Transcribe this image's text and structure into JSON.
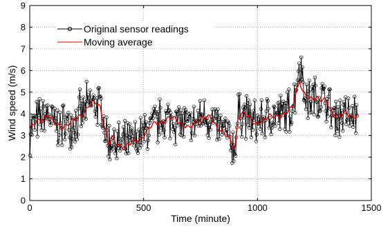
{
  "chart_data": {
    "type": "line",
    "title": "",
    "xlabel": "Time (minute)",
    "ylabel": "Wind speed (m/s)",
    "xlim": [
      0,
      1500
    ],
    "ylim": [
      0,
      9
    ],
    "xticks": [
      "0",
      "500",
      "1000",
      "1500"
    ],
    "yticks": [
      "0",
      "1",
      "2",
      "3",
      "4",
      "5",
      "6",
      "7",
      "8",
      "9"
    ],
    "grid": true,
    "legend_position": "top-left",
    "series": [
      {
        "name": "Original sensor readings",
        "color": "#000000",
        "marker": "circle",
        "x_start": 1,
        "x_step": 1,
        "x_end": 1440,
        "keypoints": [
          [
            0,
            3.3
          ],
          [
            30,
            3.6
          ],
          [
            60,
            3.8
          ],
          [
            80,
            4.0
          ],
          [
            100,
            3.6
          ],
          [
            130,
            3.4
          ],
          [
            160,
            3.5
          ],
          [
            200,
            3.7
          ],
          [
            240,
            4.1
          ],
          [
            260,
            4.4
          ],
          [
            290,
            4.5
          ],
          [
            310,
            4.3
          ],
          [
            330,
            3.4
          ],
          [
            345,
            2.6
          ],
          [
            360,
            2.9
          ],
          [
            380,
            2.6
          ],
          [
            410,
            2.5
          ],
          [
            440,
            2.6
          ],
          [
            480,
            2.8
          ],
          [
            520,
            3.3
          ],
          [
            560,
            3.6
          ],
          [
            590,
            3.7
          ],
          [
            620,
            3.8
          ],
          [
            650,
            3.7
          ],
          [
            680,
            3.5
          ],
          [
            700,
            3.3
          ],
          [
            730,
            3.6
          ],
          [
            760,
            3.9
          ],
          [
            790,
            3.8
          ],
          [
            820,
            3.4
          ],
          [
            850,
            3.2
          ],
          [
            880,
            2.8
          ],
          [
            900,
            2.3
          ],
          [
            915,
            3.9
          ],
          [
            940,
            4.1
          ],
          [
            960,
            3.8
          ],
          [
            990,
            3.5
          ],
          [
            1010,
            3.7
          ],
          [
            1040,
            3.8
          ],
          [
            1080,
            3.9
          ],
          [
            1120,
            4.0
          ],
          [
            1150,
            4.2
          ],
          [
            1170,
            5.0
          ],
          [
            1185,
            5.6
          ],
          [
            1200,
            5.0
          ],
          [
            1230,
            4.6
          ],
          [
            1260,
            4.8
          ],
          [
            1300,
            4.6
          ],
          [
            1330,
            3.9
          ],
          [
            1360,
            4.0
          ],
          [
            1390,
            4.0
          ],
          [
            1410,
            3.8
          ],
          [
            1440,
            4.0
          ]
        ],
        "noise_amplitude": 0.8,
        "min_value": 1.2,
        "max_value": 7.2
      },
      {
        "name": "Moving average",
        "color": "#e00000",
        "marker": "none",
        "x_start": 1,
        "x_step": 1,
        "x_end": 1440,
        "keypoints": [
          [
            0,
            3.3
          ],
          [
            30,
            3.6
          ],
          [
            60,
            3.8
          ],
          [
            80,
            4.0
          ],
          [
            100,
            3.6
          ],
          [
            130,
            3.4
          ],
          [
            160,
            3.5
          ],
          [
            200,
            3.7
          ],
          [
            240,
            4.1
          ],
          [
            260,
            4.4
          ],
          [
            290,
            4.5
          ],
          [
            310,
            4.3
          ],
          [
            330,
            3.4
          ],
          [
            345,
            2.6
          ],
          [
            360,
            2.9
          ],
          [
            380,
            2.6
          ],
          [
            410,
            2.5
          ],
          [
            440,
            2.6
          ],
          [
            480,
            2.8
          ],
          [
            520,
            3.3
          ],
          [
            560,
            3.6
          ],
          [
            590,
            3.7
          ],
          [
            620,
            3.8
          ],
          [
            650,
            3.7
          ],
          [
            680,
            3.5
          ],
          [
            700,
            3.3
          ],
          [
            730,
            3.6
          ],
          [
            760,
            3.9
          ],
          [
            790,
            3.8
          ],
          [
            820,
            3.4
          ],
          [
            850,
            3.2
          ],
          [
            880,
            2.8
          ],
          [
            900,
            2.3
          ],
          [
            915,
            3.9
          ],
          [
            940,
            4.1
          ],
          [
            960,
            3.8
          ],
          [
            990,
            3.5
          ],
          [
            1010,
            3.7
          ],
          [
            1040,
            3.8
          ],
          [
            1080,
            3.9
          ],
          [
            1120,
            4.0
          ],
          [
            1150,
            4.2
          ],
          [
            1170,
            5.0
          ],
          [
            1185,
            5.6
          ],
          [
            1200,
            5.0
          ],
          [
            1230,
            4.6
          ],
          [
            1260,
            4.8
          ],
          [
            1300,
            4.6
          ],
          [
            1330,
            3.9
          ],
          [
            1360,
            4.0
          ],
          [
            1390,
            4.0
          ],
          [
            1410,
            3.8
          ],
          [
            1440,
            4.0
          ]
        ]
      }
    ]
  }
}
